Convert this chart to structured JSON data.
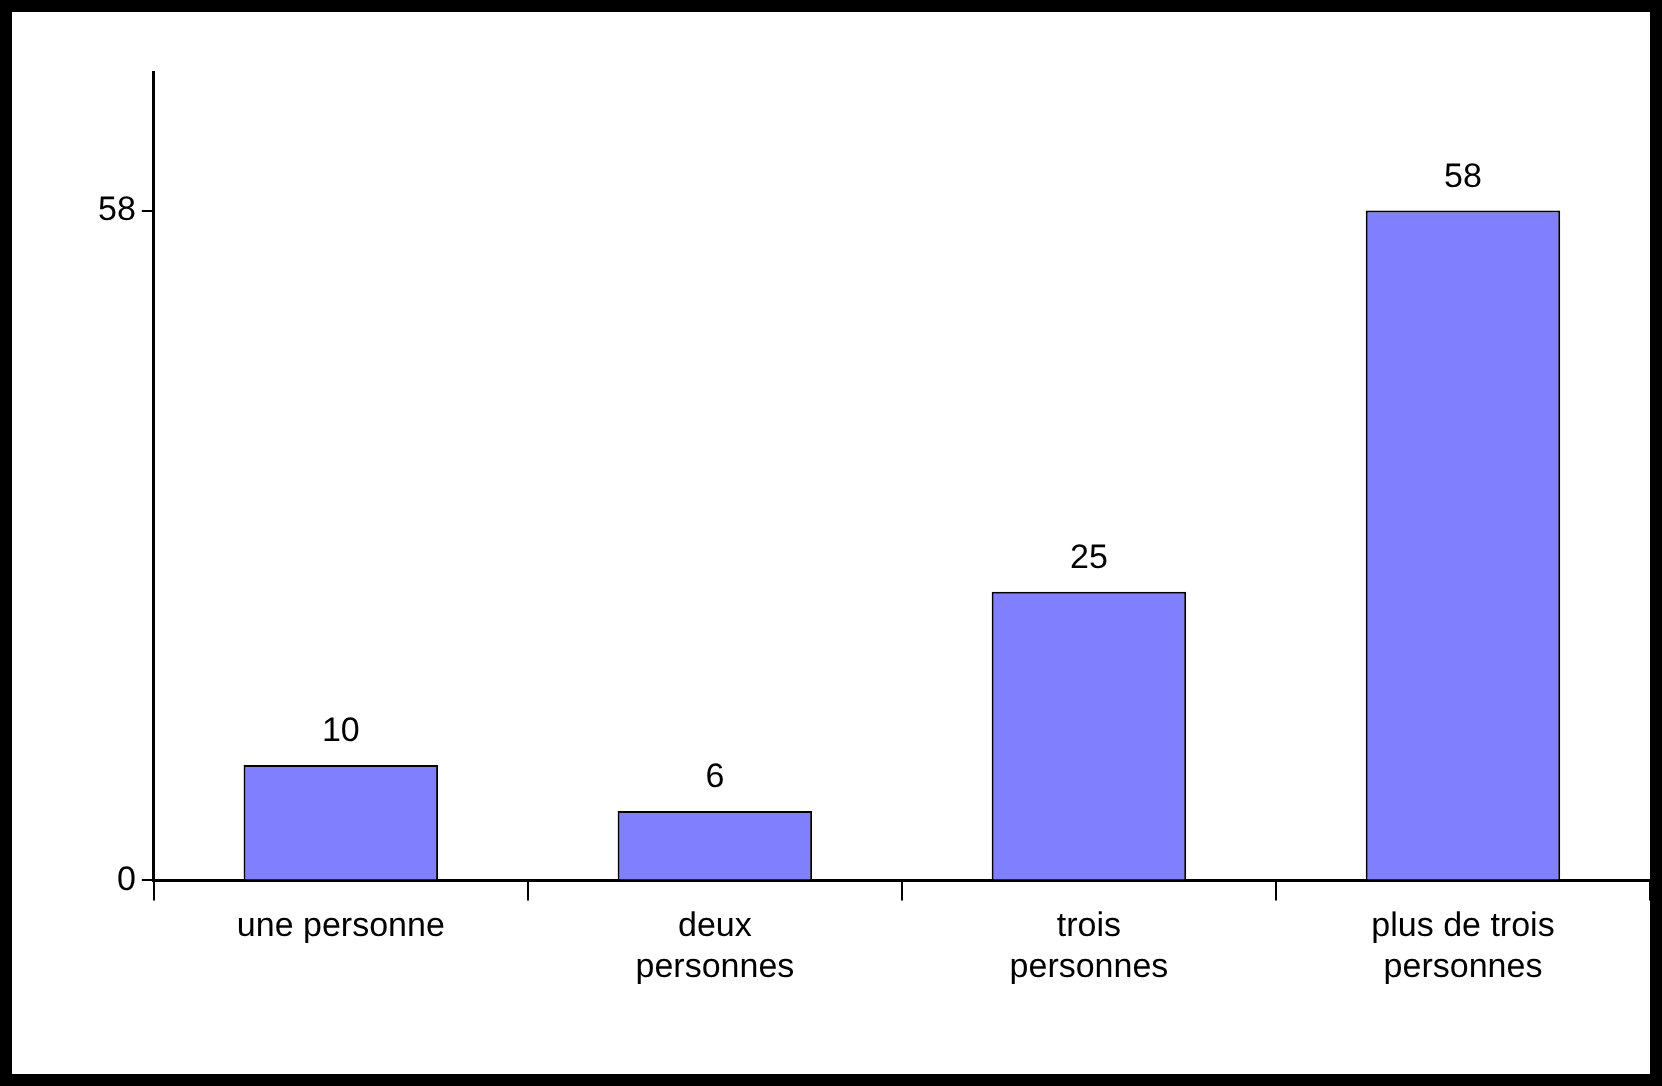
{
  "chart_data": {
    "type": "bar",
    "categories": [
      "une personne",
      "deux personnes",
      "trois personnes",
      "plus de trois personnes"
    ],
    "values": [
      10,
      6,
      25,
      58
    ],
    "color": "#8080ff",
    "ylim": [
      0,
      70
    ],
    "yticks": [
      0,
      58
    ],
    "data_labels": true,
    "grid": false,
    "legend": false
  }
}
